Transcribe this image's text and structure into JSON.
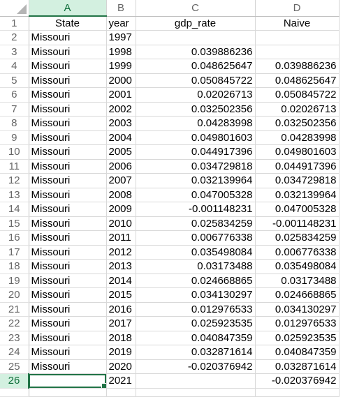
{
  "columns": [
    "A",
    "B",
    "C",
    "D"
  ],
  "header": {
    "row_number": "1",
    "cells": [
      "State",
      "year",
      "gdp_rate",
      "Naive"
    ]
  },
  "rows": [
    {
      "n": "2",
      "a": "Missouri",
      "b": "1997",
      "c": "",
      "d": ""
    },
    {
      "n": "3",
      "a": "Missouri",
      "b": "1998",
      "c": "0.039886236",
      "d": ""
    },
    {
      "n": "4",
      "a": "Missouri",
      "b": "1999",
      "c": "0.048625647",
      "d": "0.039886236"
    },
    {
      "n": "5",
      "a": "Missouri",
      "b": "2000",
      "c": "0.050845722",
      "d": "0.048625647"
    },
    {
      "n": "6",
      "a": "Missouri",
      "b": "2001",
      "c": "0.02026713",
      "d": "0.050845722"
    },
    {
      "n": "7",
      "a": "Missouri",
      "b": "2002",
      "c": "0.032502356",
      "d": "0.02026713"
    },
    {
      "n": "8",
      "a": "Missouri",
      "b": "2003",
      "c": "0.04283998",
      "d": "0.032502356"
    },
    {
      "n": "9",
      "a": "Missouri",
      "b": "2004",
      "c": "0.049801603",
      "d": "0.04283998"
    },
    {
      "n": "10",
      "a": "Missouri",
      "b": "2005",
      "c": "0.044917396",
      "d": "0.049801603"
    },
    {
      "n": "11",
      "a": "Missouri",
      "b": "2006",
      "c": "0.034729818",
      "d": "0.044917396"
    },
    {
      "n": "12",
      "a": "Missouri",
      "b": "2007",
      "c": "0.032139964",
      "d": "0.034729818"
    },
    {
      "n": "13",
      "a": "Missouri",
      "b": "2008",
      "c": "0.047005328",
      "d": "0.032139964"
    },
    {
      "n": "14",
      "a": "Missouri",
      "b": "2009",
      "c": "-0.001148231",
      "d": "0.047005328"
    },
    {
      "n": "15",
      "a": "Missouri",
      "b": "2010",
      "c": "0.025834259",
      "d": "-0.001148231"
    },
    {
      "n": "16",
      "a": "Missouri",
      "b": "2011",
      "c": "0.006776338",
      "d": "0.025834259"
    },
    {
      "n": "17",
      "a": "Missouri",
      "b": "2012",
      "c": "0.035498084",
      "d": "0.006776338"
    },
    {
      "n": "18",
      "a": "Missouri",
      "b": "2013",
      "c": "0.03173488",
      "d": "0.035498084"
    },
    {
      "n": "19",
      "a": "Missouri",
      "b": "2014",
      "c": "0.024668865",
      "d": "0.03173488"
    },
    {
      "n": "20",
      "a": "Missouri",
      "b": "2015",
      "c": "0.034130297",
      "d": "0.024668865"
    },
    {
      "n": "21",
      "a": "Missouri",
      "b": "2016",
      "c": "0.012976533",
      "d": "0.034130297"
    },
    {
      "n": "22",
      "a": "Missouri",
      "b": "2017",
      "c": "0.025923535",
      "d": "0.012976533"
    },
    {
      "n": "23",
      "a": "Missouri",
      "b": "2018",
      "c": "0.040847359",
      "d": "0.025923535"
    },
    {
      "n": "24",
      "a": "Missouri",
      "b": "2019",
      "c": "0.032871614",
      "d": "0.040847359"
    },
    {
      "n": "25",
      "a": "Missouri",
      "b": "2020",
      "c": "-0.020376942",
      "d": "0.032871614"
    },
    {
      "n": "26",
      "a": "",
      "b": "2021",
      "c": "",
      "d": "-0.020376942"
    }
  ],
  "selection": {
    "column": "A",
    "row": "26"
  },
  "colors": {
    "selection_accent": "#217346",
    "selected_header_bg": "#d3f0e0",
    "gridline": "#d9d9d9"
  }
}
